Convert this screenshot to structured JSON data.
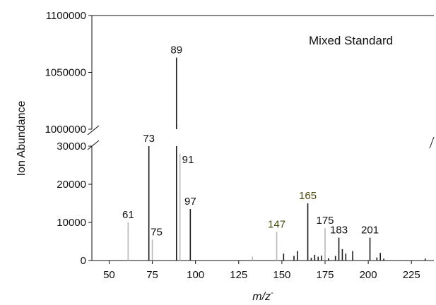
{
  "chart_data": {
    "type": "bar",
    "title": "",
    "annotation": "Mixed Standard",
    "xlabel": "m/z",
    "xlabel_superscript": "-",
    "ylabel": "Ion Abundance",
    "xlim": [
      40,
      238
    ],
    "xticks": [
      50,
      75,
      100,
      125,
      150,
      175,
      200,
      225
    ],
    "y_lower": {
      "range": [
        0,
        30000
      ],
      "ticks": [
        0,
        10000,
        20000,
        30000
      ]
    },
    "y_upper": {
      "range": [
        1000000,
        1100000
      ],
      "ticks": [
        1000000,
        1050000,
        1100000
      ]
    },
    "axis_break": true,
    "colors": {
      "dark": "#1a1a1a",
      "light": "#b8b8b8",
      "label_olive": "#4a4a10"
    },
    "peaks": [
      {
        "mz": 61,
        "abundance": 10000,
        "shade": "light",
        "label": "61"
      },
      {
        "mz": 73,
        "abundance": 30000,
        "shade": "dark",
        "label": "73"
      },
      {
        "mz": 75,
        "abundance": 5500,
        "shade": "light",
        "label": "75"
      },
      {
        "mz": 89,
        "abundance": 1063000,
        "shade": "dark",
        "label": "89"
      },
      {
        "mz": 91,
        "abundance": 28000,
        "shade": "light",
        "label": "91"
      },
      {
        "mz": 97,
        "abundance": 13500,
        "shade": "dark",
        "label": "97"
      },
      {
        "mz": 133,
        "abundance": 1000,
        "shade": "light"
      },
      {
        "mz": 147,
        "abundance": 7500,
        "shade": "light",
        "label": "147",
        "label_color": "olive"
      },
      {
        "mz": 151,
        "abundance": 1800,
        "shade": "dark"
      },
      {
        "mz": 157,
        "abundance": 1200,
        "shade": "dark"
      },
      {
        "mz": 159,
        "abundance": 2500,
        "shade": "dark"
      },
      {
        "mz": 165,
        "abundance": 15000,
        "shade": "dark",
        "label": "165",
        "label_color": "olive"
      },
      {
        "mz": 167,
        "abundance": 700,
        "shade": "dark"
      },
      {
        "mz": 169,
        "abundance": 1500,
        "shade": "dark"
      },
      {
        "mz": 171,
        "abundance": 1000,
        "shade": "dark"
      },
      {
        "mz": 173,
        "abundance": 1300,
        "shade": "dark"
      },
      {
        "mz": 175,
        "abundance": 8500,
        "shade": "light",
        "label": "175"
      },
      {
        "mz": 177,
        "abundance": 600,
        "shade": "dark"
      },
      {
        "mz": 181,
        "abundance": 1200,
        "shade": "dark"
      },
      {
        "mz": 183,
        "abundance": 6000,
        "shade": "dark",
        "label": "183"
      },
      {
        "mz": 185,
        "abundance": 3000,
        "shade": "dark"
      },
      {
        "mz": 187,
        "abundance": 1800,
        "shade": "dark"
      },
      {
        "mz": 191,
        "abundance": 2500,
        "shade": "dark"
      },
      {
        "mz": 201,
        "abundance": 6000,
        "shade": "dark",
        "label": "201"
      },
      {
        "mz": 205,
        "abundance": 800,
        "shade": "dark"
      },
      {
        "mz": 207,
        "abundance": 2000,
        "shade": "dark"
      },
      {
        "mz": 209,
        "abundance": 500,
        "shade": "dark"
      },
      {
        "mz": 233,
        "abundance": 500,
        "shade": "dark"
      }
    ]
  }
}
